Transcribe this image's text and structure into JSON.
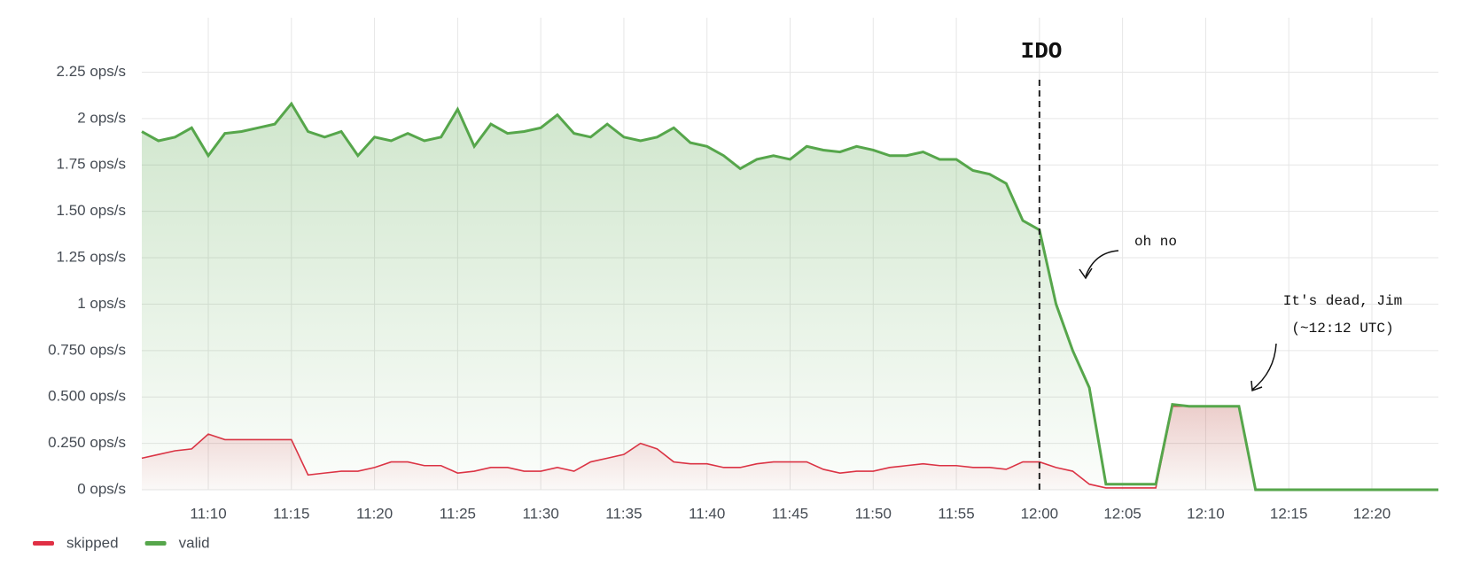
{
  "chart_data": {
    "type": "line",
    "step": true,
    "x": [
      "11:06",
      "11:07",
      "11:08",
      "11:09",
      "11:10",
      "11:11",
      "11:12",
      "11:13",
      "11:14",
      "11:15",
      "11:16",
      "11:17",
      "11:18",
      "11:19",
      "11:20",
      "11:21",
      "11:22",
      "11:23",
      "11:24",
      "11:25",
      "11:26",
      "11:27",
      "11:28",
      "11:29",
      "11:30",
      "11:31",
      "11:32",
      "11:33",
      "11:34",
      "11:35",
      "11:36",
      "11:37",
      "11:38",
      "11:39",
      "11:40",
      "11:41",
      "11:42",
      "11:43",
      "11:44",
      "11:45",
      "11:46",
      "11:47",
      "11:48",
      "11:49",
      "11:50",
      "11:51",
      "11:52",
      "11:53",
      "11:54",
      "11:55",
      "11:56",
      "11:57",
      "11:58",
      "11:59",
      "12:00",
      "12:01",
      "12:02",
      "12:03",
      "12:04",
      "12:05",
      "12:06",
      "12:07",
      "12:08",
      "12:09",
      "12:10",
      "12:11",
      "12:12",
      "12:13",
      "12:14",
      "12:15",
      "12:16",
      "12:17",
      "12:18",
      "12:19",
      "12:20",
      "12:21",
      "12:22",
      "12:23",
      "12:24"
    ],
    "series": [
      {
        "name": "skipped",
        "color": "#e02f44",
        "values": [
          0.17,
          0.19,
          0.21,
          0.22,
          0.3,
          0.27,
          0.27,
          0.27,
          0.27,
          0.27,
          0.08,
          0.09,
          0.1,
          0.1,
          0.12,
          0.15,
          0.15,
          0.13,
          0.13,
          0.09,
          0.1,
          0.12,
          0.12,
          0.1,
          0.1,
          0.12,
          0.1,
          0.15,
          0.17,
          0.19,
          0.25,
          0.22,
          0.15,
          0.14,
          0.14,
          0.12,
          0.12,
          0.14,
          0.15,
          0.15,
          0.15,
          0.11,
          0.09,
          0.1,
          0.1,
          0.12,
          0.13,
          0.14,
          0.13,
          0.13,
          0.12,
          0.12,
          0.11,
          0.15,
          0.15,
          0.12,
          0.1,
          0.03,
          0.01,
          0.01,
          0.01,
          0.01,
          0.45,
          0.45,
          0.45,
          0.45,
          0.45,
          0,
          0,
          0,
          0,
          0,
          0,
          0,
          0,
          0,
          0,
          0,
          0
        ]
      },
      {
        "name": "valid",
        "color": "#56a64b",
        "values": [
          1.93,
          1.88,
          1.9,
          1.95,
          1.8,
          1.92,
          1.93,
          1.95,
          1.97,
          2.08,
          1.93,
          1.9,
          1.93,
          1.8,
          1.9,
          1.88,
          1.92,
          1.88,
          1.9,
          2.05,
          1.85,
          1.97,
          1.92,
          1.93,
          1.95,
          2.02,
          1.92,
          1.9,
          1.97,
          1.9,
          1.88,
          1.9,
          1.95,
          1.87,
          1.85,
          1.8,
          1.73,
          1.78,
          1.8,
          1.78,
          1.85,
          1.83,
          1.82,
          1.85,
          1.83,
          1.8,
          1.8,
          1.82,
          1.78,
          1.78,
          1.72,
          1.7,
          1.65,
          1.45,
          1.4,
          1.0,
          0.75,
          0.55,
          0.03,
          0.03,
          0.03,
          0.03,
          0.46,
          0.45,
          0.45,
          0.45,
          0.45,
          0,
          0,
          0,
          0,
          0,
          0,
          0,
          0,
          0,
          0,
          0,
          0
        ]
      }
    ],
    "xlim": [
      "11:06",
      "12:24"
    ],
    "xticks": [
      "11:10",
      "11:15",
      "11:20",
      "11:25",
      "11:30",
      "11:35",
      "11:40",
      "11:45",
      "11:50",
      "11:55",
      "12:00",
      "12:05",
      "12:10",
      "12:15",
      "12:20"
    ],
    "ylim": [
      0,
      2.4
    ],
    "yticks": [
      {
        "value": 0,
        "label": "0 ops/s"
      },
      {
        "value": 0.25,
        "label": "0.250 ops/s"
      },
      {
        "value": 0.5,
        "label": "0.500 ops/s"
      },
      {
        "value": 0.75,
        "label": "0.750 ops/s"
      },
      {
        "value": 1,
        "label": "1 ops/s"
      },
      {
        "value": 1.25,
        "label": "1.25 ops/s"
      },
      {
        "value": 1.5,
        "label": "1.50 ops/s"
      },
      {
        "value": 1.75,
        "label": "1.75 ops/s"
      },
      {
        "value": 2,
        "label": "2 ops/s"
      },
      {
        "value": 2.25,
        "label": "2.25 ops/s"
      }
    ],
    "grid": true,
    "legend": "bottom-left",
    "marker_x": "12:00",
    "annotations": [
      "IDO",
      "oh no",
      "It's dead, Jim",
      "(~12:12 UTC)"
    ]
  }
}
